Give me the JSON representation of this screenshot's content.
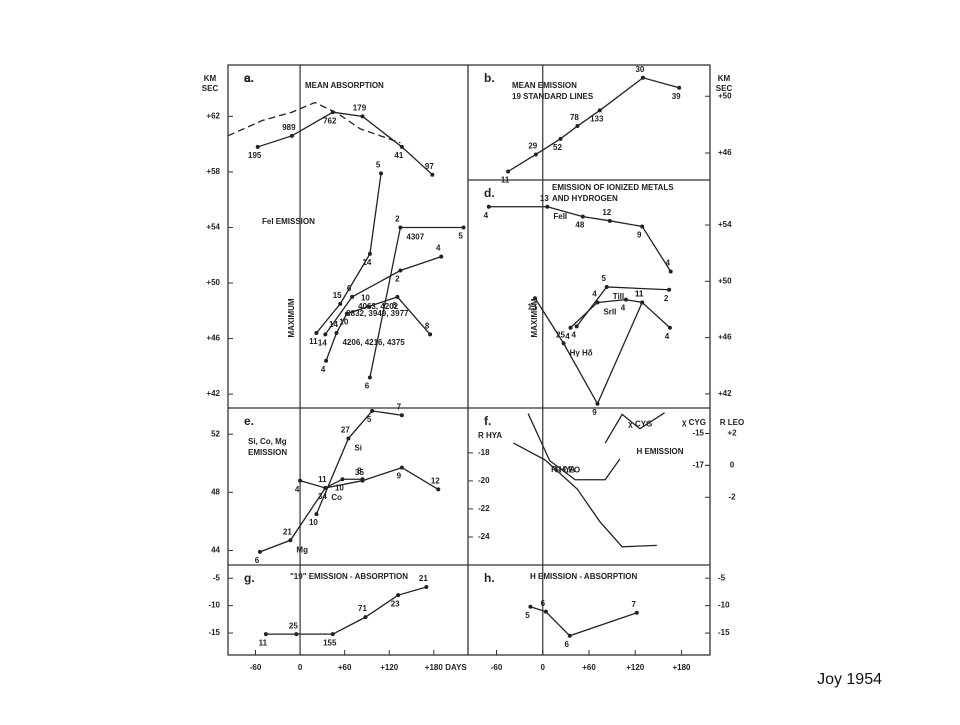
{
  "chart_data": [
    {
      "type": "line",
      "label": "a.",
      "title": [
        "MEAN ABSORPTION"
      ],
      "ylabel": [
        "KM",
        "SEC"
      ],
      "annotation": "MAXIMUM",
      "color": "#222",
      "xlim": [
        -97,
        226
      ],
      "ylim": [
        41,
        65.7
      ],
      "yticks": [
        {
          "value": 62,
          "label": "+62"
        },
        {
          "value": 58,
          "label": "+58"
        },
        {
          "value": 54,
          "label": "+54"
        },
        {
          "value": 50,
          "label": "+50"
        },
        {
          "value": 46,
          "label": "+46"
        },
        {
          "value": 42,
          "label": "+42"
        }
      ],
      "series": [
        {
          "x": [
            -57,
            -11,
            44,
            84,
            137,
            178
          ],
          "values": [
            59.8,
            60.6,
            62.3,
            62.0,
            59.8,
            57.8
          ],
          "point_labels": [
            "195",
            "989",
            "762",
            "179",
            "41",
            "97"
          ]
        },
        {
          "x": [
            -97,
            -51,
            -11,
            20,
            51,
            81,
            135
          ],
          "values": [
            60.6,
            61.7,
            62.3,
            63.0,
            62.2,
            61.1,
            60.1
          ],
          "dashed": true
        }
      ]
    },
    {
      "type": "line",
      "label": "b.",
      "title": [
        "MEAN EMISSION",
        "19 STANDARD LINES"
      ],
      "ylabel": [
        "KM",
        "SEC"
      ],
      "color": "#222",
      "xlim": [
        -97,
        217
      ],
      "ylim": [
        44.1,
        52.2
      ],
      "yticks": [
        {
          "value": 50,
          "label": "+50"
        },
        {
          "value": 46,
          "label": "+46"
        }
      ],
      "series": [
        {
          "x": [
            -45,
            -9,
            23,
            45,
            74,
            130,
            177
          ],
          "values": [
            44.7,
            45.9,
            47.0,
            47.9,
            49.0,
            51.3,
            50.6
          ],
          "point_labels": [
            "11",
            "29",
            "52",
            "78",
            "133",
            "30",
            "39"
          ]
        }
      ]
    },
    {
      "type": "line",
      "label": "c.",
      "title": [
        "FeI EMISSION"
      ],
      "color": "#222",
      "xlim": [
        -97,
        226
      ],
      "ylim": [
        41,
        65.7
      ],
      "series": [
        {
          "name": "3832, 3949, 3977",
          "x": [
            22,
            54,
            94,
            109
          ],
          "values": [
            46.4,
            48.5,
            52.1,
            57.9
          ],
          "point_labels": [
            "11",
            "15",
            "14",
            "5"
          ]
        },
        {
          "name": "4307",
          "x": [
            94,
            135,
            220
          ],
          "values": [
            43.2,
            54.0,
            54.0
          ],
          "point_labels": [
            "6",
            "2",
            "5"
          ]
        },
        {
          "name": "4063, 4202",
          "x": [
            34,
            70,
            135,
            190
          ],
          "values": [
            46.3,
            49.0,
            50.9,
            51.9
          ],
          "point_labels": [
            "14",
            "6",
            "2",
            "4"
          ]
        },
        {
          "name": "4206, 4216, 4375",
          "x": [
            35,
            49,
            63,
            92,
            131,
            175
          ],
          "values": [
            44.4,
            46.4,
            47.8,
            48.3,
            49.0,
            46.3
          ],
          "point_labels": [
            "4",
            "14",
            "10",
            "10",
            "6",
            "8"
          ]
        }
      ]
    },
    {
      "type": "line",
      "label": "d.",
      "title": [
        "EMISSION OF IONIZED METALS",
        "AND HYDROGEN"
      ],
      "annotation": "MAXIMUM",
      "color": "#222",
      "xlim": [
        -97,
        217
      ],
      "ylim": [
        41,
        57.2
      ],
      "yticks": [
        {
          "value": 54,
          "label": "+54"
        },
        {
          "value": 50,
          "label": "+50"
        },
        {
          "value": 46,
          "label": "+46"
        },
        {
          "value": 42,
          "label": "+42"
        }
      ],
      "series": [
        {
          "name": "FeII",
          "x": [
            -70,
            6,
            52,
            87,
            129,
            166
          ],
          "values": [
            55.3,
            55.3,
            54.6,
            54.3,
            53.9,
            50.7
          ],
          "point_labels": [
            "4",
            "13",
            "48",
            "12",
            "9",
            "4"
          ]
        },
        {
          "name": "TiII",
          "x": [
            44,
            83,
            164
          ],
          "values": [
            46.8,
            49.6,
            49.4
          ],
          "point_labels": [
            "4",
            "5",
            "2"
          ]
        },
        {
          "name": "SrII",
          "x": [
            36,
            71,
            108,
            129,
            165
          ],
          "values": [
            46.7,
            48.5,
            48.7,
            48.5,
            46.7
          ],
          "point_labels": [
            "4",
            "4",
            "4",
            "11",
            "4"
          ]
        },
        {
          "name": "Hγ Hδ",
          "x": [
            -10,
            27,
            71,
            129
          ],
          "values": [
            48.8,
            45.6,
            41.3,
            48.5
          ],
          "point_labels": [
            "13",
            "25",
            "9",
            "11"
          ]
        }
      ]
    },
    {
      "type": "line",
      "label": "e.",
      "title": [
        "Si, Co, Mg",
        "EMISSION"
      ],
      "color": "#222",
      "xlim": [
        -97,
        226
      ],
      "ylim": [
        43,
        53.8
      ],
      "yticks": [
        52,
        48,
        44
      ],
      "series": [
        {
          "name": "Si",
          "x": [
            22,
            65,
            97,
            137
          ],
          "values": [
            46.5,
            51.7,
            53.6,
            53.3
          ],
          "point_labels": [
            "10",
            "27",
            "5",
            "7"
          ]
        },
        {
          "name": "Co",
          "x": [
            0,
            34,
            57,
            84
          ],
          "values": [
            48.8,
            48.3,
            48.9,
            48.9
          ],
          "point_labels": [
            "4",
            "11",
            "10",
            "8"
          ]
        },
        {
          "name": "Mg",
          "x": [
            -54,
            -13,
            34,
            84,
            137,
            186
          ],
          "values": [
            43.9,
            44.7,
            48.3,
            48.8,
            49.7,
            48.2
          ],
          "point_labels": [
            "6",
            "21",
            "34",
            "35",
            "9",
            "12"
          ]
        }
      ]
    },
    {
      "type": "line",
      "label": "f.",
      "ylabel": [
        "R HYA"
      ],
      "y2label": "χ CYG",
      "y3label": "R LEO",
      "annotation": "H EMISSION",
      "color": "#222",
      "xlim": [
        -97,
        217
      ],
      "ylim": [
        -26,
        -14.8
      ],
      "y2lim": [
        -23.25,
        -13.4
      ],
      "y3lim": [
        -6.25,
        3.6
      ],
      "yticks": [
        -18,
        -20,
        -22,
        -24
      ],
      "y2ticks": [
        -15,
        -17
      ],
      "y3ticks": [
        {
          "value": 2,
          "label": "+2"
        },
        0,
        -2
      ],
      "series": [
        {
          "name": "χ CYG",
          "axis": "y2",
          "x": [
            81,
            103,
            126,
            158
          ],
          "values": [
            -15.6,
            -13.8,
            -14.7,
            -13.7
          ]
        },
        {
          "name": "R LEO",
          "axis": "y3",
          "x": [
            -19,
            9,
            42,
            81,
            100
          ],
          "values": [
            3.25,
            0.3,
            -0.9,
            -0.9,
            0.4
          ]
        },
        {
          "name": "R HYA",
          "x": [
            -38,
            3,
            45,
            74,
            103,
            148
          ],
          "values": [
            -17.3,
            -18.5,
            -20.6,
            -22.9,
            -24.7,
            -24.6
          ]
        }
      ]
    },
    {
      "type": "line",
      "label": "g.",
      "title": [
        "\"19\" EMISSION - ABSORPTION"
      ],
      "xlabel": "DAYS",
      "color": "#222",
      "xlim": [
        -97,
        226
      ],
      "ylim": [
        -19,
        -2.6
      ],
      "xticks": [
        -60,
        0,
        {
          "value": 60,
          "label": "+60"
        },
        {
          "value": 120,
          "label": "+120"
        },
        {
          "value": 180,
          "label": "+180"
        }
      ],
      "yticks": [
        -5,
        -10,
        -15
      ],
      "series": [
        {
          "x": [
            -46,
            -5,
            44,
            88,
            132,
            170
          ],
          "values": [
            -15.2,
            -15.2,
            -15.2,
            -12.1,
            -8.1,
            -6.6
          ],
          "point_labels": [
            "11",
            "25",
            "155",
            "71",
            "23",
            "21"
          ]
        }
      ]
    },
    {
      "type": "line",
      "label": "h.",
      "title": [
        "H EMISSION - ABSORPTION"
      ],
      "color": "#222",
      "xlim": [
        -97,
        217
      ],
      "ylim": [
        -19,
        -2.6
      ],
      "xticks": [
        -60,
        0,
        {
          "value": 60,
          "label": "+60"
        },
        {
          "value": 120,
          "label": "+120"
        },
        {
          "value": 180,
          "label": "+180"
        }
      ],
      "yticks": [
        -5,
        -10,
        -15
      ],
      "series": [
        {
          "x": [
            -16,
            4,
            35,
            122
          ],
          "values": [
            -10.2,
            -11.1,
            -15.5,
            -11.3
          ],
          "point_labels": [
            "5",
            "6",
            "6",
            "7"
          ]
        }
      ]
    }
  ],
  "caption": "Joy 1954"
}
